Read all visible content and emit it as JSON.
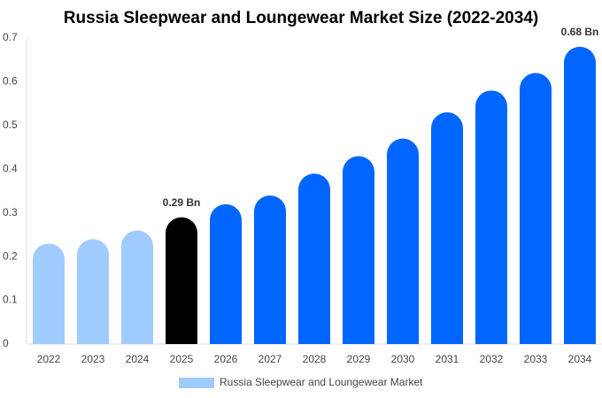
{
  "chart_data": {
    "type": "bar",
    "title": "Russia Sleepwear and Loungewear Market Size (2022-2034)",
    "categories": [
      "2022",
      "2023",
      "2024",
      "2025",
      "2026",
      "2027",
      "2028",
      "2029",
      "2030",
      "2031",
      "2032",
      "2033",
      "2034"
    ],
    "series": [
      {
        "name": "Russia Sleepwear and Loungewear Market",
        "color": "#a0cbff",
        "colors": [
          "#a0cbff",
          "#a0cbff",
          "#a0cbff",
          "#000000",
          "#0066ff",
          "#0066ff",
          "#0066ff",
          "#0066ff",
          "#0066ff",
          "#0066ff",
          "#0066ff",
          "#0066ff",
          "#0066ff"
        ],
        "values": [
          0.23,
          0.24,
          0.26,
          0.29,
          0.32,
          0.34,
          0.39,
          0.43,
          0.47,
          0.53,
          0.58,
          0.62,
          0.68
        ],
        "value_labels": [
          null,
          null,
          null,
          "0.29 Bn",
          null,
          null,
          null,
          null,
          null,
          null,
          null,
          null,
          "0.68 Bn"
        ]
      }
    ],
    "ylim": [
      0,
      0.7
    ],
    "yticks": [
      0,
      0.1,
      0.2,
      0.3,
      0.4,
      0.5,
      0.6,
      0.7
    ],
    "grid": false
  }
}
